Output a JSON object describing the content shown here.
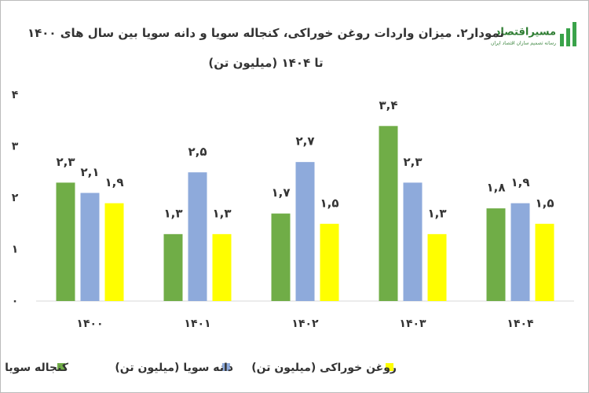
{
  "logo": {
    "name": "مسیراقتصاد",
    "tagline": "رسانه تصمیم سازان اقتصاد ایران"
  },
  "chart_data": {
    "type": "bar",
    "title": "نمودار۲. میزان واردات روغن خوراکی، کنجاله سویا و دانه سویا بین سال های ۱۴۰۰ تا ۱۴۰۴ (میلیون تن)",
    "categories": [
      "۱۴۰۰",
      "۱۴۰۱",
      "۱۴۰۲",
      "۱۴۰۳",
      "۱۴۰۴"
    ],
    "series": [
      {
        "name": "کنجاله سویا (میلیون تن)",
        "color": "#70ad47",
        "values": [
          2.3,
          1.3,
          1.7,
          3.4,
          1.8
        ],
        "value_labels": [
          "۲,۳",
          "۱,۳",
          "۱,۷",
          "۳,۴",
          "۱,۸"
        ]
      },
      {
        "name": "دانه سویا (میلیون تن)",
        "color": "#8eaadb",
        "values": [
          2.1,
          2.5,
          2.7,
          2.3,
          1.9
        ],
        "value_labels": [
          "۲,۱",
          "۲,۵",
          "۲,۷",
          "۲,۳",
          "۱,۹"
        ]
      },
      {
        "name": "روغن خوراکی (میلیون تن)",
        "color": "#ffff00",
        "values": [
          1.9,
          1.3,
          1.5,
          1.3,
          1.5
        ],
        "value_labels": [
          "۱,۹",
          "۱,۳",
          "۱,۵",
          "۱,۳",
          "۱,۵"
        ]
      }
    ],
    "ylim": [
      0,
      4
    ],
    "yticks": [
      {
        "value": 0,
        "label": "۰"
      },
      {
        "value": 1,
        "label": "۱"
      },
      {
        "value": 2,
        "label": "۲"
      },
      {
        "value": 3,
        "label": "۳"
      },
      {
        "value": 4,
        "label": "۴"
      }
    ],
    "grid": false,
    "legend": "bottom"
  }
}
